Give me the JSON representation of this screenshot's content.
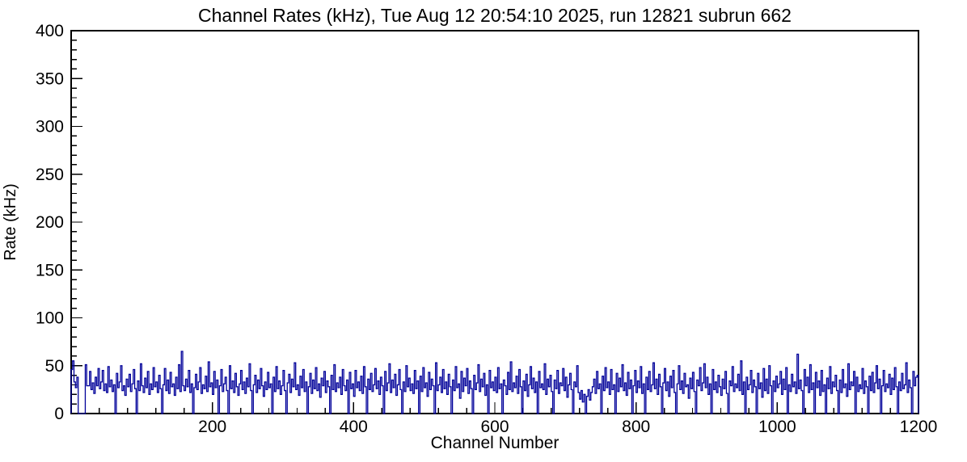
{
  "chart_data": {
    "type": "line",
    "subtype": "step-histogram",
    "title": "Channel Rates (kHz), Tue Aug 12 20:54:10 2025, run 12821 subrun 662",
    "xlabel": "Channel Number",
    "ylabel": "Rate (kHz)",
    "xlim": [
      0,
      1200
    ],
    "ylim": [
      0,
      400
    ],
    "x_major_ticks": [
      200,
      400,
      600,
      800,
      1000,
      1200
    ],
    "x_minor_step": 40,
    "y_major_ticks": [
      0,
      50,
      100,
      150,
      200,
      250,
      300,
      350,
      400
    ],
    "y_minor_step": 10,
    "grid": false,
    "line_color": "#000099",
    "frame_color": "#000000",
    "background_color": "#ffffff",
    "bin_width_channels": 2,
    "values": [
      46,
      55,
      33,
      27,
      38,
      0,
      0,
      0,
      0,
      0,
      51,
      29,
      29,
      44,
      25,
      32,
      21,
      38,
      29,
      47,
      26,
      33,
      45,
      24,
      31,
      22,
      49,
      28,
      35,
      23,
      30,
      0,
      42,
      27,
      33,
      50,
      24,
      29,
      19,
      36,
      28,
      41,
      23,
      31,
      46,
      26,
      0,
      34,
      24,
      52,
      29,
      22,
      37,
      27,
      44,
      20,
      31,
      25,
      48,
      28,
      33,
      22,
      40,
      26,
      0,
      30,
      47,
      24,
      35,
      21,
      43,
      28,
      31,
      19,
      38,
      26,
      51,
      23,
      65,
      29,
      24,
      36,
      28,
      45,
      22,
      31,
      0,
      27,
      41,
      25,
      33,
      48,
      21,
      30,
      26,
      39,
      23,
      54,
      28,
      32,
      20,
      44,
      27,
      35,
      0,
      29,
      46,
      23,
      31,
      38,
      24,
      0,
      50,
      26,
      34,
      22,
      42,
      28,
      19,
      31,
      45,
      25,
      33,
      21,
      37,
      28,
      52,
      24,
      0,
      30,
      40,
      22,
      35,
      26,
      47,
      29,
      18,
      33,
      25,
      43,
      27,
      31,
      0,
      38,
      23,
      49,
      26,
      34,
      20,
      29,
      45,
      24,
      0,
      32,
      41,
      22,
      36,
      28,
      53,
      25,
      30,
      19,
      39,
      27,
      46,
      23,
      33,
      0,
      28,
      42,
      21,
      35,
      26,
      48,
      24,
      31,
      17,
      37,
      29,
      44,
      22,
      34,
      28,
      0,
      40,
      25,
      51,
      23,
      32,
      27,
      38,
      20,
      46,
      29,
      24,
      35,
      0,
      43,
      26,
      31,
      18,
      45,
      27,
      33,
      24,
      39,
      21,
      49,
      28,
      0,
      36,
      25,
      42,
      23,
      30,
      47,
      26,
      34,
      20,
      38,
      29,
      0,
      44,
      24,
      32,
      52,
      22,
      35,
      27,
      41,
      19,
      30,
      46,
      25,
      0,
      33,
      23,
      50,
      28,
      37,
      24,
      31,
      21,
      45,
      26,
      34,
      0,
      39,
      23,
      48,
      27,
      32,
      18,
      43,
      25,
      36,
      29,
      0,
      53,
      24,
      30,
      38,
      22,
      46,
      26,
      33,
      20,
      41,
      28,
      0,
      35,
      24,
      49,
      27,
      31,
      16,
      44,
      23,
      37,
      29,
      47,
      21,
      34,
      26,
      0,
      40,
      25,
      32,
      51,
      23,
      36,
      28,
      42,
      19,
      30,
      0,
      45,
      27,
      33,
      24,
      38,
      22,
      48,
      26,
      31,
      0,
      35,
      29,
      20,
      43,
      25,
      54,
      23,
      32,
      27,
      39,
      21,
      46,
      28,
      0,
      34,
      24,
      41,
      18,
      30,
      49,
      26,
      37,
      22,
      33,
      0,
      44,
      27,
      31,
      25,
      52,
      20,
      36,
      28,
      40,
      23,
      0,
      35,
      26,
      45,
      21,
      32,
      29,
      47,
      24,
      38,
      17,
      30,
      42,
      25,
      0,
      33,
      28,
      50,
      22,
      15,
      24,
      12,
      20,
      0,
      18,
      25,
      14,
      22,
      28,
      36,
      21,
      44,
      26,
      31,
      0,
      39,
      24,
      48,
      27,
      33,
      20,
      46,
      25,
      30,
      0,
      42,
      23,
      37,
      28,
      51,
      24,
      32,
      19,
      43,
      26,
      35,
      0,
      29,
      45,
      22,
      34,
      27,
      49,
      21,
      31,
      0,
      38,
      25,
      44,
      23,
      30,
      53,
      26,
      36,
      20,
      41,
      28,
      0,
      32,
      47,
      24,
      33,
      18,
      39,
      27,
      45,
      22,
      0,
      31,
      50,
      25,
      34,
      21,
      42,
      28,
      30,
      16,
      37,
      26,
      43,
      23,
      0,
      35,
      29,
      48,
      24,
      32,
      52,
      27,
      38,
      20,
      31,
      0,
      46,
      25,
      33,
      22,
      40,
      28,
      19,
      36,
      26,
      44,
      21,
      0,
      34,
      29,
      49,
      23,
      31,
      27,
      41,
      24,
      55,
      20,
      33,
      0,
      38,
      25,
      30,
      45,
      22,
      35,
      28,
      0,
      42,
      26,
      32,
      17,
      47,
      24,
      36,
      21,
      50,
      29,
      0,
      34,
      23,
      39,
      27,
      31,
      44,
      20,
      36,
      25,
      48,
      0,
      30,
      23,
      41,
      28,
      33,
      21,
      62,
      26,
      35,
      24,
      0,
      46,
      29,
      38,
      22,
      51,
      25,
      32,
      0,
      43,
      27,
      34,
      19,
      45,
      23,
      30,
      0,
      37,
      26,
      49,
      21,
      33,
      28,
      40,
      24,
      0,
      35,
      22,
      46,
      27,
      31,
      18,
      52,
      25,
      33,
      29,
      44,
      0,
      38,
      23,
      30,
      26,
      47,
      21,
      34,
      28,
      0,
      39,
      24,
      43,
      22,
      32,
      50,
      26,
      36,
      0,
      29,
      45,
      23,
      31,
      27,
      41,
      20,
      37,
      25,
      48,
      28,
      0,
      33,
      24,
      42,
      26,
      30,
      53,
      22,
      35,
      27,
      0,
      44,
      29,
      38,
      40
    ]
  }
}
